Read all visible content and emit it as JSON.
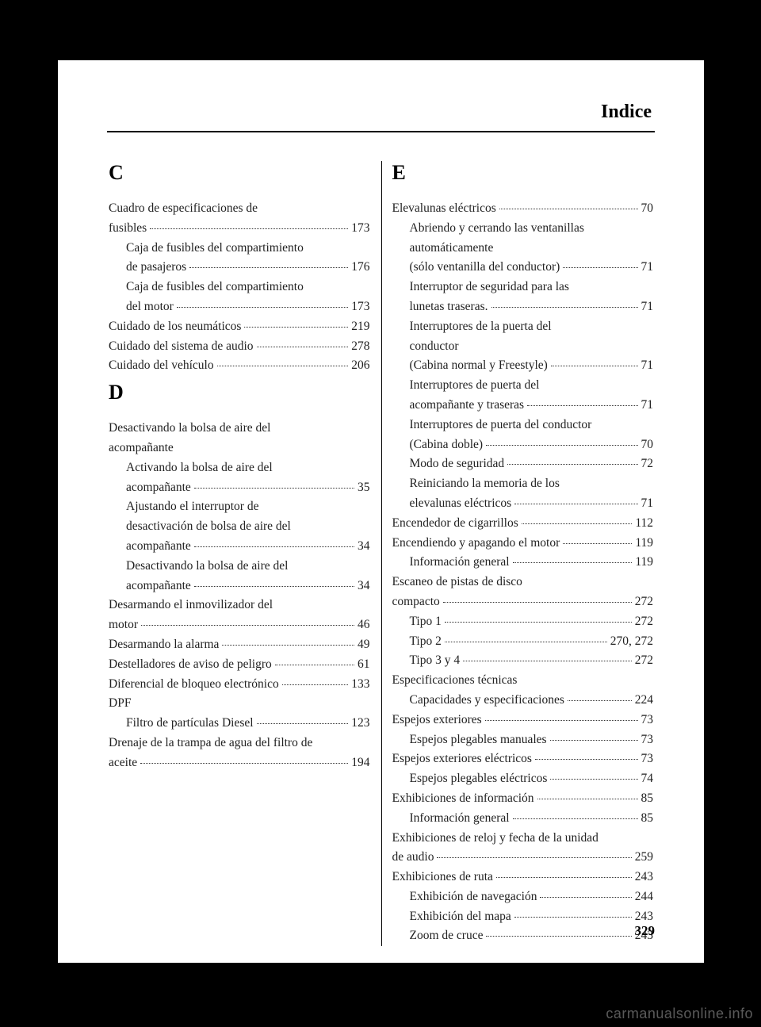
{
  "title": "Indice",
  "page_number": "329",
  "watermark": "carmanualsonline.info",
  "left": [
    {
      "type": "letter",
      "text": "C"
    },
    {
      "type": "group",
      "header_lines": [
        "Cuadro de especificaciones de"
      ],
      "header_last": "fusibles",
      "page": "173",
      "subs": [
        {
          "lines": [
            "Caja de fusibles del compartimiento"
          ],
          "last": "de pasajeros",
          "page": "176"
        },
        {
          "lines": [
            "Caja de fusibles del compartimiento"
          ],
          "last": "del motor",
          "page": "173"
        }
      ]
    },
    {
      "type": "entry",
      "label": "Cuidado de los neumáticos",
      "page": "219"
    },
    {
      "type": "entry",
      "label": "Cuidado del sistema de audio",
      "page": "278"
    },
    {
      "type": "entry",
      "label": "Cuidado del vehículo",
      "page": "206"
    },
    {
      "type": "letter",
      "text": "D"
    },
    {
      "type": "group",
      "header_lines": [
        "Desactivando la bolsa de aire del",
        "acompañante"
      ],
      "header_last": null,
      "page": null,
      "subs": [
        {
          "lines": [
            "Activando la bolsa de aire del"
          ],
          "last": "acompañante",
          "page": "35"
        },
        {
          "lines": [
            "Ajustando el interruptor de",
            "desactivación de bolsa de aire del"
          ],
          "last": "acompañante",
          "page": "34"
        },
        {
          "lines": [
            "Desactivando la bolsa de aire del"
          ],
          "last": "acompañante",
          "page": "34"
        }
      ]
    },
    {
      "type": "group",
      "header_lines": [
        "Desarmando el inmovilizador del"
      ],
      "header_last": "motor",
      "page": "46",
      "subs": []
    },
    {
      "type": "entry",
      "label": "Desarmando la alarma",
      "page": "49"
    },
    {
      "type": "entry",
      "label": "Destelladores de aviso de peligro",
      "page": "61"
    },
    {
      "type": "entry",
      "label": "Diferencial de bloqueo electrónico",
      "page": "133"
    },
    {
      "type": "group",
      "header_lines": [
        "DPF"
      ],
      "header_last": null,
      "page": null,
      "subs": [
        {
          "lines": [],
          "last": "Filtro de partículas Diesel",
          "page": "123"
        }
      ]
    },
    {
      "type": "group",
      "header_lines": [
        "Drenaje de la trampa de agua del filtro de"
      ],
      "header_last": "aceite",
      "page": "194",
      "subs": []
    }
  ],
  "right": [
    {
      "type": "letter",
      "text": "E"
    },
    {
      "type": "group",
      "header_lines": [],
      "header_last": "Elevalunas eléctricos",
      "page": "70",
      "subs": [
        {
          "lines": [
            "Abriendo y cerrando las ventanillas",
            "automáticamente"
          ],
          "last": "(sólo ventanilla del conductor)",
          "page": "71"
        },
        {
          "lines": [
            "Interruptor de seguridad para las"
          ],
          "last": "lunetas traseras.",
          "page": "71"
        },
        {
          "lines": [
            "Interruptores de la puerta del",
            "conductor"
          ],
          "last": "(Cabina normal y Freestyle)",
          "page": "71"
        },
        {
          "lines": [
            "Interruptores de puerta del"
          ],
          "last": "acompañante y traseras",
          "page": "71"
        },
        {
          "lines": [
            "Interruptores de puerta del conductor"
          ],
          "last": "(Cabina doble)",
          "page": "70"
        },
        {
          "lines": [],
          "last": "Modo de seguridad",
          "page": "72"
        },
        {
          "lines": [
            "Reiniciando la memoria de los"
          ],
          "last": "elevalunas eléctricos",
          "page": "71"
        }
      ]
    },
    {
      "type": "entry",
      "label": "Encendedor de cigarrillos",
      "page": "112"
    },
    {
      "type": "group",
      "header_lines": [],
      "header_last": "Encendiendo y apagando el motor",
      "page": "119",
      "subs": [
        {
          "lines": [],
          "last": "Información general",
          "page": "119"
        }
      ]
    },
    {
      "type": "group",
      "header_lines": [
        "Escaneo de pistas de disco"
      ],
      "header_last": "compacto",
      "page": "272",
      "subs": [
        {
          "lines": [],
          "last": "Tipo 1",
          "page": "272"
        },
        {
          "lines": [],
          "last": "Tipo 2",
          "page": "270, 272"
        },
        {
          "lines": [],
          "last": "Tipo 3 y 4",
          "page": "272"
        }
      ]
    },
    {
      "type": "group",
      "header_lines": [
        "Especificaciones técnicas"
      ],
      "header_last": null,
      "page": null,
      "subs": [
        {
          "lines": [],
          "last": "Capacidades y especificaciones",
          "page": "224"
        }
      ]
    },
    {
      "type": "group",
      "header_lines": [],
      "header_last": "Espejos exteriores",
      "page": "73",
      "subs": [
        {
          "lines": [],
          "last": "Espejos plegables manuales",
          "page": "73"
        }
      ]
    },
    {
      "type": "group",
      "header_lines": [],
      "header_last": "Espejos exteriores eléctricos",
      "page": "73",
      "subs": [
        {
          "lines": [],
          "last": "Espejos plegables eléctricos",
          "page": "74"
        }
      ]
    },
    {
      "type": "group",
      "header_lines": [],
      "header_last": "Exhibiciones de información",
      "page": "85",
      "subs": [
        {
          "lines": [],
          "last": "Información general",
          "page": "85"
        }
      ]
    },
    {
      "type": "group",
      "header_lines": [
        "Exhibiciones de reloj y fecha de la unidad"
      ],
      "header_last": "de audio",
      "page": "259",
      "subs": []
    },
    {
      "type": "group",
      "header_lines": [],
      "header_last": "Exhibiciones de ruta",
      "page": "243",
      "subs": [
        {
          "lines": [],
          "last": "Exhibición de navegación",
          "page": "244"
        },
        {
          "lines": [],
          "last": "Exhibición del mapa",
          "page": "243"
        },
        {
          "lines": [],
          "last": "Zoom de cruce",
          "page": "243"
        }
      ]
    }
  ]
}
